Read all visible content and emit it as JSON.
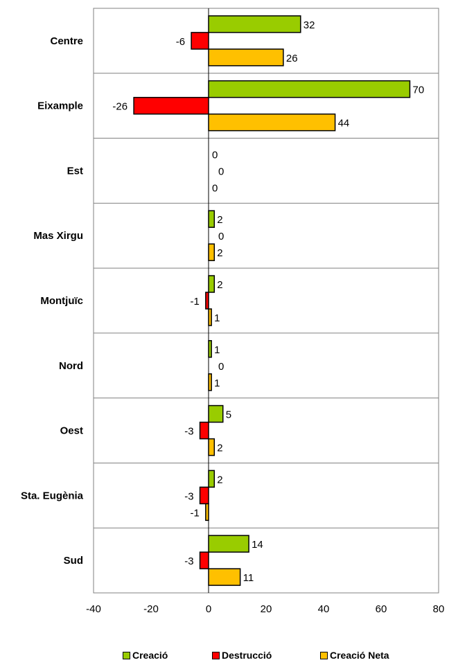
{
  "chart_data": {
    "type": "bar",
    "orientation": "horizontal",
    "categories": [
      "Centre",
      "Eixample",
      "Est",
      "Mas Xirgu",
      "Montjuïc",
      "Nord",
      "Oest",
      "Sta. Eugènia",
      "Sud"
    ],
    "series": [
      {
        "name": "Creació",
        "color": "#99CC00",
        "values": [
          32,
          70,
          0,
          2,
          2,
          1,
          5,
          2,
          14
        ]
      },
      {
        "name": "Destrucció",
        "color": "#FF0000",
        "values": [
          -6,
          -26,
          0,
          0,
          -1,
          0,
          -3,
          -3,
          -3
        ]
      },
      {
        "name": "Creació Neta",
        "color": "#FFC000",
        "values": [
          26,
          44,
          0,
          2,
          1,
          1,
          2,
          -1,
          11
        ]
      }
    ],
    "xlim": [
      -40,
      80
    ],
    "xticks": [
      -40,
      -20,
      0,
      20,
      40,
      60,
      80
    ],
    "data_labels": true,
    "legend_position": "bottom",
    "gridlines": "horizontal category separators"
  }
}
